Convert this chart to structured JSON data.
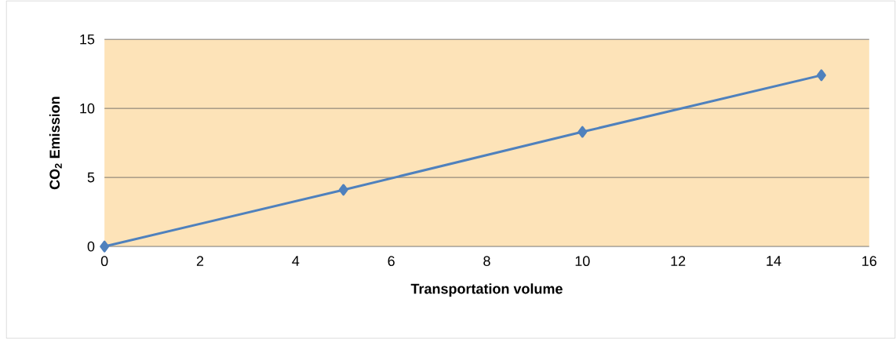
{
  "chart_data": {
    "type": "line",
    "xlabel": "Transportation volume",
    "ylabel": "CO$_{2}$ Emission",
    "x": [
      0,
      5,
      10,
      15
    ],
    "series": [
      {
        "color": "#4f81bd",
        "values": [
          0,
          4.1,
          8.3,
          12.4
        ]
      }
    ],
    "xlim": [
      0,
      16
    ],
    "xticks": [
      0,
      2,
      4,
      6,
      8,
      10,
      12,
      14,
      16
    ],
    "ylim": [
      0,
      15
    ],
    "yticks": [
      0,
      5,
      10,
      15
    ],
    "grid": "y",
    "marker": "diamond",
    "line_style": "solid"
  }
}
